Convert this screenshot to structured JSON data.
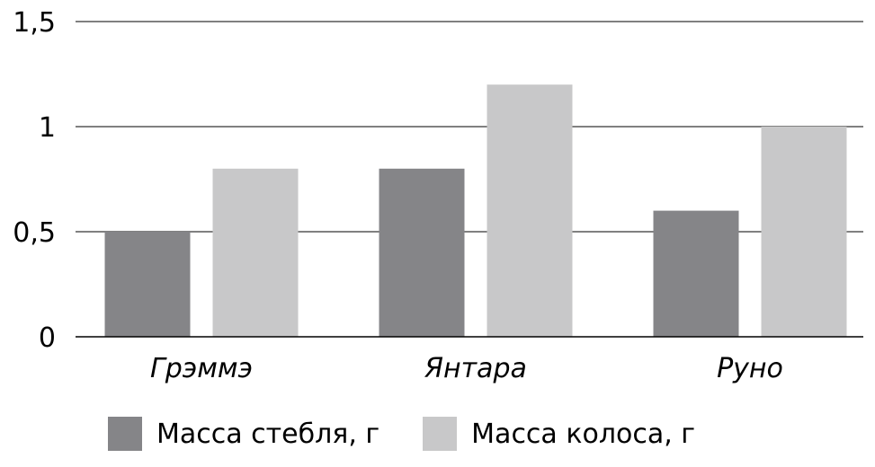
{
  "chart_data": {
    "type": "bar",
    "categories": [
      "Грэммэ",
      "Янтара",
      "Руно"
    ],
    "series": [
      {
        "name": "Масса стебля, г",
        "values": [
          0.5,
          0.8,
          0.6
        ],
        "color": "#858588"
      },
      {
        "name": "Масса колоса, г",
        "values": [
          0.8,
          1.2,
          1.0
        ],
        "color": "#c8c8c9"
      }
    ],
    "yticks": [
      {
        "value": 0,
        "label": "0"
      },
      {
        "value": 0.5,
        "label": "0,5"
      },
      {
        "value": 1,
        "label": "1"
      },
      {
        "value": 1.5,
        "label": "1,5"
      }
    ],
    "ylim": [
      0,
      1.5
    ],
    "grid": true,
    "legend_position": "bottom",
    "title": "",
    "xlabel": "",
    "ylabel": ""
  }
}
